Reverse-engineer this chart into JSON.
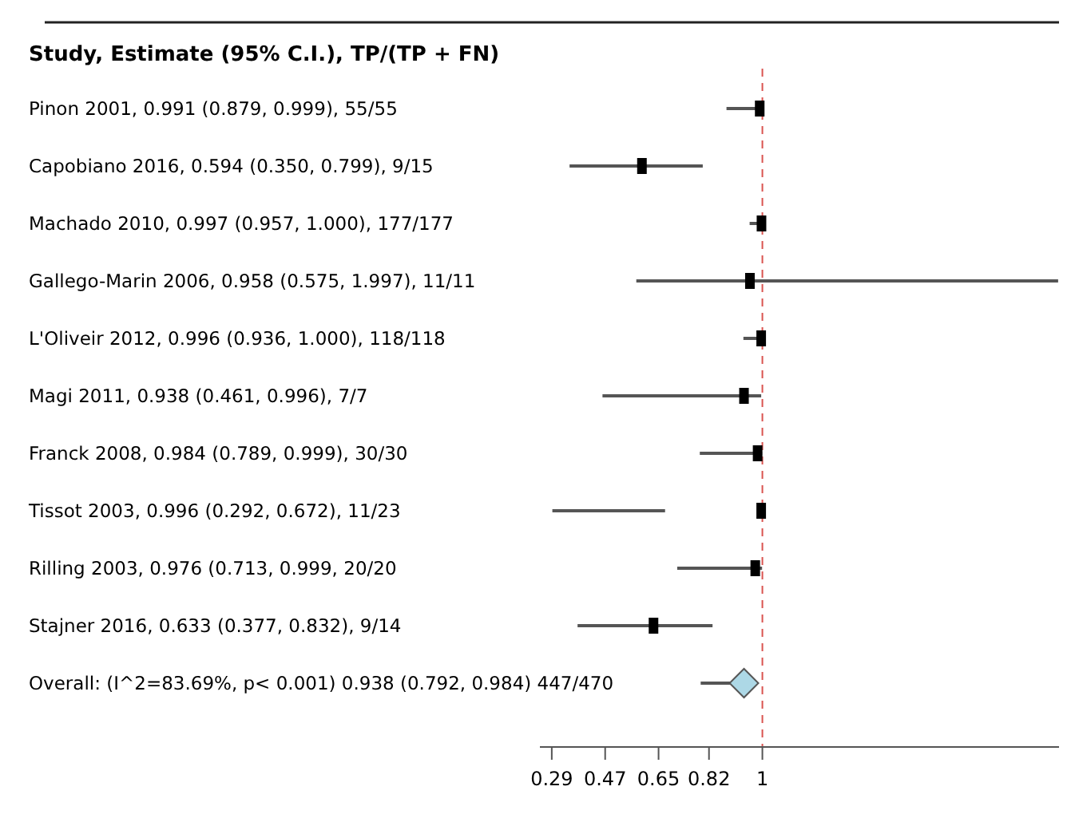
{
  "chart_data": {
    "type": "scatter",
    "orientation": "horizontal",
    "title": "Study, Estimate (95% C.I.), TP/(TP + FN)",
    "categories": [
      "Pinon 2001, 0.991 (0.879, 0.999), 55/55",
      "Capobiano 2016, 0.594 (0.350, 0.799), 9/15",
      "Machado 2010, 0.997 (0.957, 1.000), 177/177",
      "Gallego-Marin 2006, 0.958 (0.575, 1.997), 11/11",
      "L'Oliveir 2012, 0.996 (0.936, 1.000), 118/118",
      "Magi 2011, 0.938 (0.461, 0.996), 7/7",
      "Franck 2008, 0.984 (0.789, 0.999), 30/30",
      "Tissot 2003, 0.996 (0.292, 0.672), 11/23",
      "Rilling 2003, 0.976 (0.713, 0.999, 20/20",
      "Stajner 2016, 0.633 (0.377, 0.832), 9/14",
      "Overall: (I^2=83.69%, p< 0.001) 0.938 (0.792, 0.984) 447/470"
    ],
    "series": [
      {
        "type": "scatter",
        "marker": "square",
        "color": "#000000",
        "values": [
          0.991,
          0.594,
          0.997,
          0.958,
          0.996,
          0.938,
          0.984,
          0.996,
          0.976,
          0.633,
          null
        ],
        "errors": [
          [
            0.879,
            0.999
          ],
          [
            0.35,
            0.799
          ],
          [
            0.957,
            1.0
          ],
          [
            0.575,
            1.997
          ],
          [
            0.936,
            1.0
          ],
          [
            0.461,
            0.996
          ],
          [
            0.789,
            0.999
          ],
          [
            0.292,
            0.672
          ],
          [
            0.713,
            0.999
          ],
          [
            0.377,
            0.832
          ],
          null
        ]
      },
      {
        "type": "scatter",
        "marker": "diamond",
        "color": "#add8e6",
        "values": [
          null,
          null,
          null,
          null,
          null,
          null,
          null,
          null,
          null,
          null,
          0.938
        ],
        "errors": [
          null,
          null,
          null,
          null,
          null,
          null,
          null,
          null,
          null,
          null,
          [
            0.792,
            0.984
          ]
        ]
      }
    ],
    "xlim": [
      0.25,
      2.0
    ],
    "xticks": [
      0.29,
      0.47,
      0.65,
      0.82,
      1
    ],
    "ref_lines": [
      {
        "axis": "x",
        "value": 1,
        "color": "#d9534f",
        "line_style": "dashed"
      }
    ]
  }
}
